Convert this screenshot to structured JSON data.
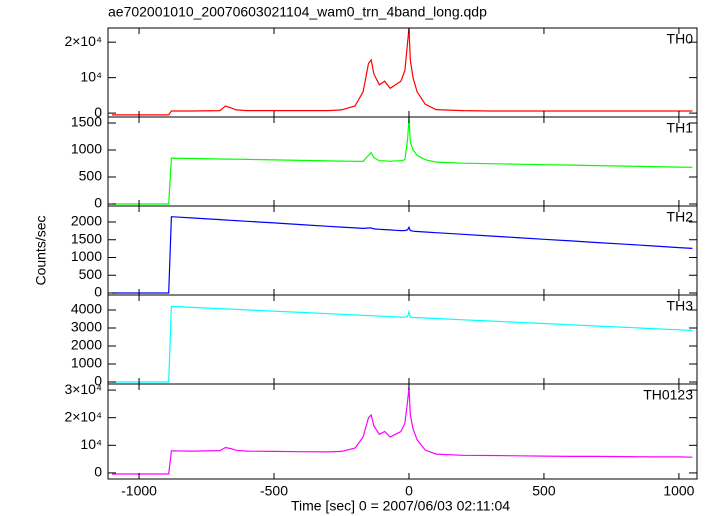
{
  "chart_data": [
    {
      "type": "line",
      "title": "ae702001010_20070603021104_wam0_trn_4band_long.qdp",
      "x": [
        -1100,
        -1000,
        -900,
        -890,
        -880,
        -800,
        -700,
        -680,
        -660,
        -640,
        -600,
        -500,
        -400,
        -300,
        -250,
        -200,
        -170,
        -150,
        -140,
        -130,
        -110,
        -90,
        -70,
        -50,
        -30,
        -15,
        -5,
        0,
        5,
        15,
        30,
        60,
        100,
        200,
        300,
        400,
        500,
        600,
        700,
        800,
        900,
        1000,
        1050
      ],
      "series": [
        {
          "name": "TH0",
          "color": "#ff0000",
          "values": [
            -500,
            -500,
            -500,
            -500,
            600,
            600,
            700,
            2000,
            1500,
            900,
            700,
            700,
            700,
            700,
            900,
            2000,
            6000,
            14000,
            15000,
            11000,
            8000,
            9000,
            7000,
            8000,
            9000,
            12000,
            20000,
            24000,
            15000,
            10000,
            6000,
            2500,
            1000,
            700,
            600,
            600,
            600,
            600,
            600,
            600,
            600,
            600,
            600
          ]
        }
      ],
      "xlim": [
        -1115,
        1067
      ],
      "xticks": [
        -1000,
        -500,
        0,
        500,
        1000
      ],
      "ylim": [
        -1100,
        24000
      ],
      "yticks": [
        0,
        {
          "value": 10000,
          "label": "10⁴"
        },
        {
          "value": 20000,
          "label": "2×10⁴"
        }
      ]
    },
    {
      "type": "line",
      "x": [
        -1100,
        -1000,
        -900,
        -890,
        -880,
        -800,
        -700,
        -680,
        -660,
        -640,
        -600,
        -500,
        -400,
        -300,
        -250,
        -200,
        -170,
        -150,
        -140,
        -130,
        -110,
        -90,
        -70,
        -50,
        -30,
        -15,
        -5,
        0,
        5,
        15,
        30,
        60,
        100,
        200,
        300,
        400,
        500,
        600,
        700,
        800,
        900,
        1000,
        1050
      ],
      "series": [
        {
          "name": "TH1",
          "color": "#00ff00",
          "values": [
            0,
            0,
            0,
            0,
            850,
            843,
            834,
            832,
            831,
            829,
            825,
            816,
            808,
            799,
            795,
            791,
            788,
            900,
            950,
            860,
            800,
            800,
            790,
            800,
            800,
            820,
            1200,
            1600,
            1150,
            1000,
            900,
            820,
            775,
            755,
            746,
            737,
            728,
            720,
            711,
            702,
            693,
            684,
            680
          ]
        }
      ],
      "xlim": [
        -1115,
        1067
      ],
      "xticks": [
        -1000,
        -500,
        0,
        500,
        1000
      ],
      "ylim": [
        -37,
        1611
      ],
      "yticks": [
        0,
        500,
        1000,
        1500
      ]
    },
    {
      "type": "line",
      "ylabel": "Counts/sec",
      "x": [
        -1100,
        -1000,
        -900,
        -890,
        -880,
        -800,
        -700,
        -680,
        -660,
        -640,
        -600,
        -500,
        -400,
        -300,
        -250,
        -200,
        -170,
        -150,
        -140,
        -130,
        -110,
        -90,
        -70,
        -50,
        -30,
        -15,
        -5,
        0,
        5,
        15,
        30,
        60,
        100,
        200,
        300,
        400,
        500,
        600,
        700,
        800,
        900,
        1000,
        1050
      ],
      "series": [
        {
          "name": "TH2",
          "color": "#0000ff",
          "values": [
            0,
            0,
            0,
            0,
            2150,
            2113,
            2066,
            2057,
            2047,
            2038,
            2019,
            1973,
            1926,
            1879,
            1856,
            1833,
            1819,
            1830,
            1830,
            1805,
            1795,
            1785,
            1776,
            1767,
            1757,
            1760,
            1780,
            1850,
            1760,
            1740,
            1731,
            1717,
            1699,
            1652,
            1606,
            1559,
            1513,
            1466,
            1420,
            1373,
            1327,
            1280,
            1257
          ]
        }
      ],
      "xlim": [
        -1115,
        1067
      ],
      "xticks": [
        -1000,
        -500,
        0,
        500,
        1000
      ],
      "ylim": [
        -56,
        2450
      ],
      "yticks": [
        0,
        500,
        1000,
        1500,
        2000
      ]
    },
    {
      "type": "line",
      "x": [
        -1100,
        -1000,
        -900,
        -890,
        -880,
        -800,
        -700,
        -680,
        -660,
        -640,
        -600,
        -500,
        -400,
        -300,
        -250,
        -200,
        -170,
        -150,
        -140,
        -130,
        -110,
        -90,
        -70,
        -50,
        -30,
        -15,
        -5,
        0,
        5,
        15,
        30,
        60,
        100,
        200,
        300,
        400,
        500,
        600,
        700,
        800,
        900,
        1000,
        1050
      ],
      "series": [
        {
          "name": "TH3",
          "color": "#00ffff",
          "values": [
            0,
            0,
            0,
            0,
            4200,
            4144,
            4074,
            4060,
            4046,
            4032,
            4004,
            3934,
            3864,
            3794,
            3759,
            3724,
            3703,
            3690,
            3683,
            3675,
            3661,
            3647,
            3633,
            3619,
            3605,
            3600,
            3650,
            3900,
            3600,
            3580,
            3577,
            3556,
            3528,
            3458,
            3388,
            3318,
            3248,
            3178,
            3108,
            3038,
            2968,
            2898,
            2863
          ]
        }
      ],
      "xlim": [
        -1115,
        1067
      ],
      "xticks": [
        -1000,
        -500,
        0,
        500,
        1000
      ],
      "ylim": [
        -111,
        4833
      ],
      "yticks": [
        0,
        1000,
        2000,
        3000,
        4000
      ]
    },
    {
      "type": "line",
      "xlabel": "Time [sec] 0 = 2007/06/03 02:11:04",
      "x": [
        -1100,
        -1000,
        -900,
        -890,
        -880,
        -800,
        -700,
        -680,
        -660,
        -640,
        -600,
        -500,
        -400,
        -300,
        -250,
        -200,
        -170,
        -150,
        -140,
        -130,
        -110,
        -90,
        -70,
        -50,
        -30,
        -15,
        -5,
        0,
        5,
        15,
        30,
        60,
        100,
        200,
        300,
        400,
        500,
        600,
        700,
        800,
        900,
        1000,
        1050
      ],
      "series": [
        {
          "name": "TH0123",
          "color": "#ff00ff",
          "values": [
            -400,
            -400,
            -400,
            -400,
            8000,
            7900,
            8100,
            9200,
            8800,
            8200,
            7900,
            7800,
            7700,
            7600,
            7800,
            9000,
            13000,
            20000,
            21000,
            17000,
            14000,
            15000,
            13000,
            14000,
            15000,
            18000,
            26000,
            31000,
            21000,
            16000,
            12000,
            8300,
            6800,
            6400,
            6300,
            6200,
            6100,
            6000,
            6000,
            5900,
            5800,
            5800,
            5700
          ]
        }
      ],
      "xlim": [
        -1115,
        1067
      ],
      "xticks": [
        -1000,
        -500,
        0,
        500,
        1000
      ],
      "ylim": [
        -2200,
        32200
      ],
      "yticks": [
        0,
        {
          "value": 10000,
          "label": "10⁴"
        },
        {
          "value": 20000,
          "label": "2×10⁴"
        },
        {
          "value": 30000,
          "label": "3×10⁴"
        }
      ]
    }
  ]
}
